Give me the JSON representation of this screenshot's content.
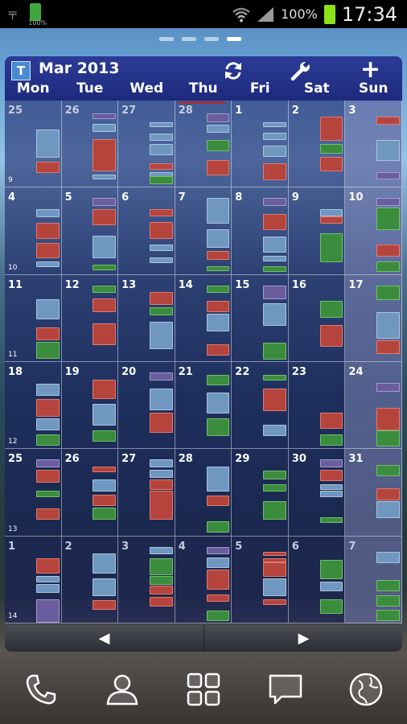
{
  "status_bar": {
    "clock": "17:34",
    "battery_percent": "100%",
    "small_battery_label": "100%",
    "icons": [
      "usb-icon",
      "battery-small-icon",
      "wifi-icon",
      "signal-icon",
      "battery-icon"
    ]
  },
  "home_pages": {
    "count": 4,
    "active_index": 3
  },
  "widget": {
    "logo_letter": "T",
    "month_title": "Mar 2013",
    "weekdays": [
      "Mon",
      "Tue",
      "Wed",
      "Thu",
      "Fri",
      "Sat",
      "Sun"
    ],
    "prev_label": "◀",
    "next_label": "▶",
    "weeks": [
      {
        "week": "9",
        "days": [
          {
            "d": "25",
            "other": true,
            "ev": [
              [
                "b",
                0.33,
                0.65
              ],
              [
                "r",
                0.7,
                0.82
              ]
            ]
          },
          {
            "d": "26",
            "other": true,
            "ev": [
              [
                "p",
                0.15,
                0.2
              ],
              [
                "b",
                0.27,
                0.35
              ],
              [
                "r",
                0.44,
                0.8
              ],
              [
                "b",
                0.85,
                0.9
              ]
            ]
          },
          {
            "d": "27",
            "other": true,
            "ev": [
              [
                "b",
                0.25,
                0.3
              ],
              [
                "b",
                0.38,
                0.45
              ],
              [
                "b",
                0.5,
                0.62
              ],
              [
                "r",
                0.72,
                0.78
              ],
              [
                "b",
                0.82,
                0.87
              ],
              [
                "g",
                0.87,
                0.95
              ]
            ]
          },
          {
            "d": "28",
            "other": true,
            "ev": [
              [
                "p",
                0.15,
                0.24
              ],
              [
                "b",
                0.28,
                0.36
              ],
              [
                "g",
                0.45,
                0.57
              ],
              [
                "r",
                0.68,
                0.85
              ]
            ]
          },
          {
            "d": "1",
            "ev": [
              [
                "b",
                0.25,
                0.3
              ],
              [
                "b",
                0.37,
                0.44
              ],
              [
                "b",
                0.52,
                0.64
              ],
              [
                "r",
                0.72,
                0.9
              ]
            ]
          },
          {
            "d": "2",
            "ev": [
              [
                "r",
                0.18,
                0.45
              ],
              [
                "g",
                0.5,
                0.6
              ],
              [
                "r",
                0.65,
                0.8
              ]
            ]
          },
          {
            "d": "3",
            "ev": [
              [
                "r",
                0.18,
                0.27
              ],
              [
                "b",
                0.45,
                0.68
              ],
              [
                "p",
                0.82,
                0.9
              ]
            ]
          }
        ]
      },
      {
        "week": "10",
        "days": [
          {
            "d": "4",
            "ev": [
              [
                "b",
                0.25,
                0.33
              ],
              [
                "r",
                0.4,
                0.58
              ],
              [
                "r",
                0.63,
                0.8
              ],
              [
                "b",
                0.85,
                0.9
              ]
            ]
          },
          {
            "d": "5",
            "ev": [
              [
                "p",
                0.12,
                0.2
              ],
              [
                "r",
                0.25,
                0.42
              ],
              [
                "b",
                0.55,
                0.8
              ],
              [
                "g",
                0.88,
                0.94
              ]
            ]
          },
          {
            "d": "6",
            "ev": [
              [
                "r",
                0.25,
                0.32
              ],
              [
                "r",
                0.39,
                0.58
              ],
              [
                "b",
                0.65,
                0.72
              ],
              [
                "b",
                0.8,
                0.86
              ]
            ]
          },
          {
            "d": "7",
            "ev": [
              [
                "b",
                0.12,
                0.4
              ],
              [
                "b",
                0.48,
                0.68
              ],
              [
                "r",
                0.73,
                0.82
              ],
              [
                "g",
                0.9,
                0.95
              ]
            ]
          },
          {
            "d": "8",
            "ev": [
              [
                "p",
                0.12,
                0.2
              ],
              [
                "r",
                0.3,
                0.48
              ],
              [
                "b",
                0.56,
                0.74
              ],
              [
                "b",
                0.78,
                0.84
              ],
              [
                "g",
                0.9,
                0.96
              ]
            ]
          },
          {
            "d": "9",
            "ev": [
              [
                "b",
                0.25,
                0.32
              ],
              [
                "r",
                0.33,
                0.4
              ],
              [
                "g",
                0.52,
                0.85
              ]
            ]
          },
          {
            "d": "10",
            "ev": [
              [
                "p",
                0.12,
                0.2
              ],
              [
                "g",
                0.23,
                0.48
              ],
              [
                "r",
                0.65,
                0.78
              ],
              [
                "g",
                0.85,
                0.96
              ]
            ]
          }
        ]
      },
      {
        "week": "11",
        "days": [
          {
            "d": "11",
            "ev": [
              [
                "b",
                0.28,
                0.5
              ],
              [
                "r",
                0.6,
                0.74
              ],
              [
                "g",
                0.77,
                0.95
              ]
            ]
          },
          {
            "d": "12",
            "ev": [
              [
                "g",
                0.12,
                0.2
              ],
              [
                "r",
                0.27,
                0.42
              ],
              [
                "r",
                0.56,
                0.8
              ]
            ]
          },
          {
            "d": "13",
            "ev": [
              [
                "r",
                0.2,
                0.34
              ],
              [
                "g",
                0.37,
                0.46
              ],
              [
                "b",
                0.54,
                0.84
              ]
            ]
          },
          {
            "d": "14",
            "ev": [
              [
                "g",
                0.12,
                0.2
              ],
              [
                "r",
                0.3,
                0.42
              ],
              [
                "b",
                0.45,
                0.64
              ],
              [
                "r",
                0.8,
                0.92
              ]
            ]
          },
          {
            "d": "15",
            "ev": [
              [
                "p",
                0.12,
                0.27
              ],
              [
                "b",
                0.33,
                0.58
              ],
              [
                "g",
                0.78,
                0.96
              ]
            ]
          },
          {
            "d": "16",
            "ev": [
              [
                "g",
                0.3,
                0.48
              ],
              [
                "r",
                0.58,
                0.82
              ]
            ]
          },
          {
            "d": "17",
            "ev": [
              [
                "g",
                0.12,
                0.28
              ],
              [
                "b",
                0.43,
                0.72
              ],
              [
                "r",
                0.75,
                0.9
              ]
            ]
          }
        ]
      },
      {
        "week": "12",
        "days": [
          {
            "d": "18",
            "ev": [
              [
                "b",
                0.25,
                0.38
              ],
              [
                "r",
                0.42,
                0.62
              ],
              [
                "b",
                0.65,
                0.78
              ],
              [
                "g",
                0.83,
                0.95
              ]
            ]
          },
          {
            "d": "19",
            "ev": [
              [
                "r",
                0.2,
                0.42
              ],
              [
                "b",
                0.48,
                0.72
              ],
              [
                "g",
                0.78,
                0.9
              ]
            ]
          },
          {
            "d": "20",
            "ev": [
              [
                "p",
                0.12,
                0.2
              ],
              [
                "b",
                0.3,
                0.54
              ],
              [
                "r",
                0.58,
                0.8
              ]
            ]
          },
          {
            "d": "21",
            "ev": [
              [
                "g",
                0.15,
                0.26
              ],
              [
                "b",
                0.35,
                0.58
              ],
              [
                "g",
                0.65,
                0.84
              ]
            ]
          },
          {
            "d": "22",
            "ev": [
              [
                "g",
                0.15,
                0.2
              ],
              [
                "r",
                0.3,
                0.55
              ],
              [
                "b",
                0.72,
                0.84
              ]
            ]
          },
          {
            "d": "23",
            "ev": [
              [
                "r",
                0.58,
                0.76
              ],
              [
                "g",
                0.83,
                0.95
              ]
            ]
          },
          {
            "d": "24",
            "ev": [
              [
                "p",
                0.24,
                0.33
              ],
              [
                "r",
                0.53,
                0.78
              ],
              [
                "g",
                0.78,
                0.96
              ]
            ]
          }
        ]
      },
      {
        "week": "13",
        "days": [
          {
            "d": "25",
            "ev": [
              [
                "p",
                0.12,
                0.2
              ],
              [
                "r",
                0.24,
                0.38
              ],
              [
                "g",
                0.48,
                0.54
              ],
              [
                "r",
                0.68,
                0.8
              ]
            ]
          },
          {
            "d": "26",
            "ev": [
              [
                "r",
                0.2,
                0.26
              ],
              [
                "b",
                0.35,
                0.48
              ],
              [
                "r",
                0.52,
                0.64
              ],
              [
                "g",
                0.67,
                0.8
              ]
            ]
          },
          {
            "d": "27",
            "ev": [
              [
                "b",
                0.12,
                0.2
              ],
              [
                "b",
                0.24,
                0.32
              ],
              [
                "r",
                0.35,
                0.46
              ],
              [
                "r",
                0.48,
                0.8
              ]
            ]
          },
          {
            "d": "28",
            "ev": [
              [
                "b",
                0.2,
                0.48
              ],
              [
                "r",
                0.53,
                0.64
              ],
              [
                "g",
                0.83,
                0.95
              ]
            ]
          },
          {
            "d": "29",
            "ev": [
              [
                "g",
                0.25,
                0.34
              ],
              [
                "g",
                0.4,
                0.48
              ],
              [
                "g",
                0.6,
                0.8
              ]
            ]
          },
          {
            "d": "30",
            "ev": [
              [
                "p",
                0.12,
                0.2
              ],
              [
                "r",
                0.24,
                0.36
              ],
              [
                "b",
                0.4,
                0.46
              ],
              [
                "b",
                0.48,
                0.54
              ],
              [
                "g",
                0.78,
                0.84
              ]
            ]
          },
          {
            "d": "31",
            "ev": [
              [
                "g",
                0.18,
                0.3
              ],
              [
                "r",
                0.45,
                0.58
              ],
              [
                "b",
                0.6,
                0.78
              ]
            ]
          }
        ]
      },
      {
        "week": "14",
        "days": [
          {
            "d": "1",
            "other": true,
            "ev": [
              [
                "r",
                0.25,
                0.42
              ],
              [
                "b",
                0.46,
                0.52
              ],
              [
                "b",
                0.55,
                0.64
              ],
              [
                "p",
                0.72,
                0.98
              ]
            ]
          },
          {
            "d": "2",
            "other": true,
            "ev": [
              [
                "b",
                0.2,
                0.42
              ],
              [
                "b",
                0.48,
                0.68
              ],
              [
                "r",
                0.73,
                0.83
              ]
            ]
          },
          {
            "d": "3",
            "other": true,
            "ev": [
              [
                "b",
                0.12,
                0.2
              ],
              [
                "g",
                0.25,
                0.44
              ],
              [
                "g",
                0.46,
                0.55
              ],
              [
                "r",
                0.57,
                0.66
              ],
              [
                "r",
                0.7,
                0.8
              ]
            ]
          },
          {
            "d": "4",
            "other": true,
            "ev": [
              [
                "p",
                0.12,
                0.2
              ],
              [
                "b",
                0.24,
                0.35
              ],
              [
                "r",
                0.38,
                0.6
              ],
              [
                "r",
                0.67,
                0.74
              ],
              [
                "g",
                0.85,
                0.96
              ]
            ]
          },
          {
            "d": "5",
            "other": true,
            "ev": [
              [
                "r",
                0.18,
                0.22
              ],
              [
                "r",
                0.25,
                0.29
              ],
              [
                "r",
                0.3,
                0.46
              ],
              [
                "b",
                0.48,
                0.68
              ],
              [
                "r",
                0.72,
                0.78
              ]
            ]
          },
          {
            "d": "6",
            "other": true,
            "ev": [
              [
                "g",
                0.27,
                0.48
              ],
              [
                "b",
                0.52,
                0.62
              ],
              [
                "g",
                0.72,
                0.88
              ]
            ]
          },
          {
            "d": "7",
            "other": true,
            "ev": [
              [
                "b",
                0.18,
                0.3
              ],
              [
                "g",
                0.5,
                0.62
              ],
              [
                "g",
                0.68,
                0.8
              ],
              [
                "g",
                0.84,
                0.96
              ]
            ]
          }
        ]
      }
    ]
  },
  "dock": {
    "icons": [
      "phone-icon",
      "contacts-icon",
      "apps-icon",
      "messaging-icon",
      "browser-icon"
    ]
  }
}
